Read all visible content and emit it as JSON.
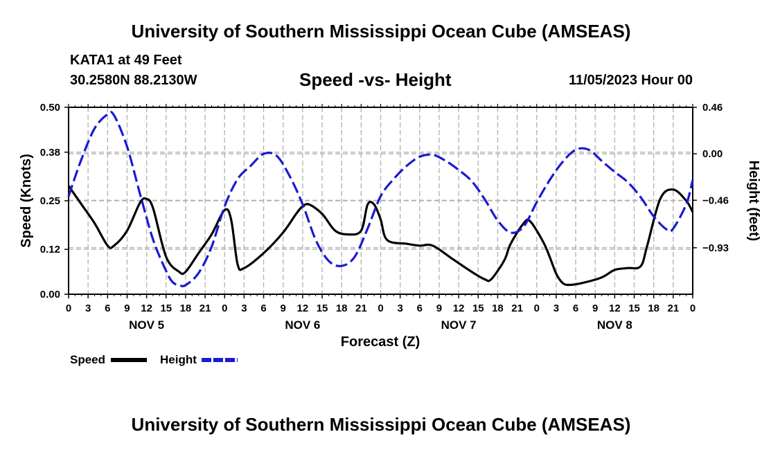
{
  "header": {
    "title_top": "University of Southern Mississippi Ocean Cube (AMSEAS)",
    "station": "KATA1 at 49 Feet",
    "coords": "30.2580N  88.2130W",
    "chart_title": "Speed -vs- Height",
    "date": "11/05/2023 Hour 00"
  },
  "footer": {
    "title_bottom": "University of Southern Mississippi Ocean Cube (AMSEAS)"
  },
  "chart_data": {
    "type": "line",
    "title": "Speed -vs- Height",
    "xlabel": "Forecast (Z)",
    "ylabel": "Speed (Knots)",
    "y2label": "Height (feet)",
    "xlim": [
      0,
      96
    ],
    "ylim": [
      0.0,
      0.5
    ],
    "y2lim": [
      -1.39,
      0.46
    ],
    "yticks": [
      0.0,
      0.12,
      0.25,
      0.38,
      0.5
    ],
    "ytick_labels": [
      "0.00",
      "0.12",
      "0.25",
      "0.38",
      "0.50"
    ],
    "y2ticks": [
      -0.93,
      -0.46,
      0.0,
      0.46
    ],
    "y2tick_labels": [
      "−0.93",
      "−0.46",
      "0.00",
      "0.46"
    ],
    "xtick_hours": [
      0,
      3,
      6,
      9,
      12,
      15,
      18,
      21,
      24,
      27,
      30,
      33,
      36,
      39,
      42,
      45,
      48,
      51,
      54,
      57,
      60,
      63,
      66,
      69,
      72,
      75,
      78,
      81,
      84,
      87,
      90,
      93,
      96
    ],
    "xtick_labels": [
      "0",
      "3",
      "6",
      "9",
      "12",
      "15",
      "18",
      "21",
      "0",
      "3",
      "6",
      "9",
      "12",
      "15",
      "18",
      "21",
      "0",
      "3",
      "6",
      "9",
      "12",
      "15",
      "18",
      "21",
      "0",
      "3",
      "6",
      "9",
      "12",
      "15",
      "18",
      "21",
      "0"
    ],
    "day_labels": [
      {
        "hour": 12,
        "label": "NOV 5"
      },
      {
        "hour": 36,
        "label": "NOV 6"
      },
      {
        "hour": 60,
        "label": "NOV 7"
      },
      {
        "hour": 84,
        "label": "NOV 8"
      }
    ],
    "grid": true,
    "legend_position": "bottom-left",
    "series": [
      {
        "name": "Speed",
        "axis": "left",
        "color": "#000000",
        "style": "solid",
        "points": [
          [
            0,
            0.29
          ],
          [
            2,
            0.24
          ],
          [
            4,
            0.19
          ],
          [
            6,
            0.13
          ],
          [
            7,
            0.13
          ],
          [
            9,
            0.17
          ],
          [
            11,
            0.245
          ],
          [
            12,
            0.255
          ],
          [
            13,
            0.23
          ],
          [
            15,
            0.1
          ],
          [
            17,
            0.06
          ],
          [
            18,
            0.06
          ],
          [
            20,
            0.11
          ],
          [
            22,
            0.16
          ],
          [
            24,
            0.225
          ],
          [
            25,
            0.2
          ],
          [
            26,
            0.08
          ],
          [
            27,
            0.07
          ],
          [
            30,
            0.11
          ],
          [
            33,
            0.165
          ],
          [
            35,
            0.215
          ],
          [
            36,
            0.235
          ],
          [
            37,
            0.24
          ],
          [
            39,
            0.215
          ],
          [
            41,
            0.17
          ],
          [
            43,
            0.16
          ],
          [
            45,
            0.17
          ],
          [
            46,
            0.24
          ],
          [
            47,
            0.24
          ],
          [
            48,
            0.2
          ],
          [
            49,
            0.145
          ],
          [
            52,
            0.135
          ],
          [
            54,
            0.13
          ],
          [
            56,
            0.13
          ],
          [
            59,
            0.095
          ],
          [
            62,
            0.06
          ],
          [
            64,
            0.04
          ],
          [
            65,
            0.04
          ],
          [
            67,
            0.09
          ],
          [
            68,
            0.135
          ],
          [
            70,
            0.19
          ],
          [
            71,
            0.195
          ],
          [
            73,
            0.14
          ],
          [
            74,
            0.1
          ],
          [
            75,
            0.055
          ],
          [
            76,
            0.03
          ],
          [
            77,
            0.025
          ],
          [
            79,
            0.03
          ],
          [
            82,
            0.045
          ],
          [
            84,
            0.065
          ],
          [
            86,
            0.07
          ],
          [
            88,
            0.075
          ],
          [
            89,
            0.13
          ],
          [
            91,
            0.255
          ],
          [
            93,
            0.28
          ],
          [
            95,
            0.25
          ],
          [
            96,
            0.22
          ]
        ]
      },
      {
        "name": "Height",
        "axis": "right",
        "color": "#1a1ad0",
        "style": "dashed",
        "points": [
          [
            0,
            -0.42
          ],
          [
            2,
            -0.05
          ],
          [
            4,
            0.25
          ],
          [
            6,
            0.39
          ],
          [
            7,
            0.38
          ],
          [
            9,
            0.07
          ],
          [
            11,
            -0.4
          ],
          [
            13,
            -0.85
          ],
          [
            15,
            -1.16
          ],
          [
            16,
            -1.27
          ],
          [
            17,
            -1.3
          ],
          [
            18,
            -1.3
          ],
          [
            20,
            -1.18
          ],
          [
            22,
            -0.92
          ],
          [
            24,
            -0.52
          ],
          [
            26,
            -0.25
          ],
          [
            28,
            -0.12
          ],
          [
            30,
            0.0
          ],
          [
            32,
            -0.02
          ],
          [
            34,
            -0.22
          ],
          [
            36,
            -0.5
          ],
          [
            38,
            -0.85
          ],
          [
            40,
            -1.06
          ],
          [
            42,
            -1.11
          ],
          [
            44,
            -1.02
          ],
          [
            46,
            -0.74
          ],
          [
            48,
            -0.42
          ],
          [
            50,
            -0.25
          ],
          [
            52,
            -0.12
          ],
          [
            54,
            -0.03
          ],
          [
            56,
            -0.01
          ],
          [
            58,
            -0.07
          ],
          [
            60,
            -0.16
          ],
          [
            62,
            -0.27
          ],
          [
            64,
            -0.45
          ],
          [
            66,
            -0.66
          ],
          [
            68,
            -0.78
          ],
          [
            70,
            -0.72
          ],
          [
            72,
            -0.48
          ],
          [
            74,
            -0.26
          ],
          [
            76,
            -0.08
          ],
          [
            78,
            0.04
          ],
          [
            80,
            0.04
          ],
          [
            82,
            -0.07
          ],
          [
            84,
            -0.18
          ],
          [
            86,
            -0.28
          ],
          [
            88,
            -0.43
          ],
          [
            90,
            -0.62
          ],
          [
            92,
            -0.75
          ],
          [
            93,
            -0.74
          ],
          [
            95,
            -0.5
          ],
          [
            96,
            -0.26
          ]
        ]
      }
    ]
  }
}
